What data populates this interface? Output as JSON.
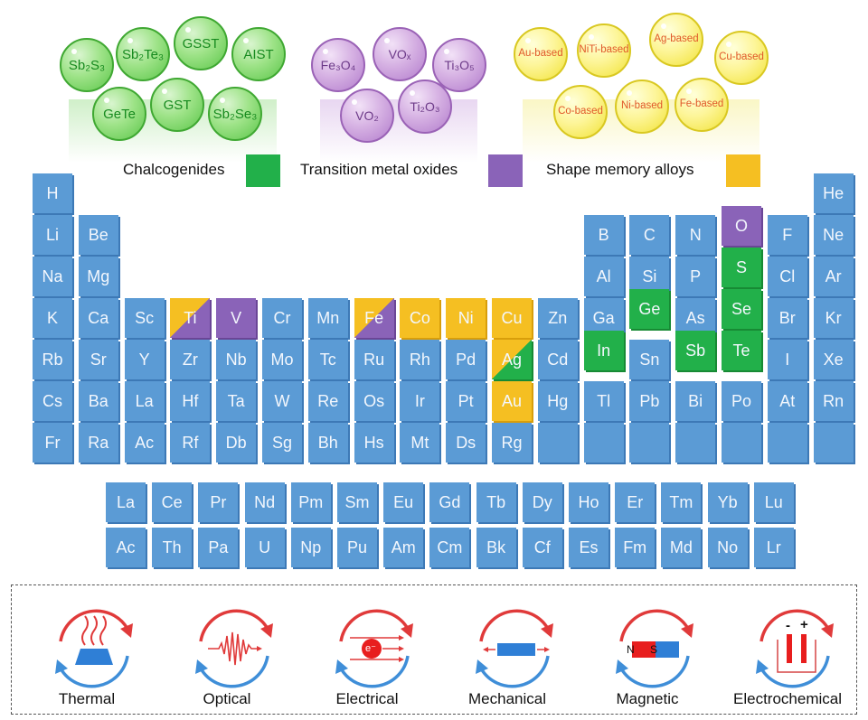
{
  "bubbles": {
    "chalcogenides": [
      {
        "label": "Sb₂S₃"
      },
      {
        "label": "Sb₂Te₃"
      },
      {
        "label": "GSST"
      },
      {
        "label": "AIST"
      },
      {
        "label": "GeTe"
      },
      {
        "label": "GST"
      },
      {
        "label": "Sb₂Se₃"
      }
    ],
    "oxides": [
      {
        "label": "Fe₃O₄"
      },
      {
        "label": "VOₓ"
      },
      {
        "label": "Ti₃O₅"
      },
      {
        "label": "VO₂"
      },
      {
        "label": "Ti₂O₃"
      }
    ],
    "alloys": [
      {
        "label": "Au-based"
      },
      {
        "label": "NiTi-based"
      },
      {
        "label": "Ag-based"
      },
      {
        "label": "Cu-based"
      },
      {
        "label": "Co-based"
      },
      {
        "label": "Ni-based"
      },
      {
        "label": "Fe-based"
      }
    ]
  },
  "legend": {
    "chalcogenides": "Chalcogenides",
    "oxides": "Transition metal oxides",
    "alloys": "Shape memory alloys"
  },
  "colors": {
    "element": "#5b9bd5",
    "chalcogenide": "#22b04a",
    "oxide": "#8a63b8",
    "alloy": "#f5bf22",
    "arrow_red": "#e03a3a",
    "arrow_blue": "#3f8ed8"
  },
  "table": {
    "main": [
      [
        "H",
        "",
        "",
        "",
        "",
        "",
        "",
        "",
        "",
        "",
        "",
        "",
        "",
        "",
        "",
        "",
        "",
        "He"
      ],
      [
        "Li",
        "Be",
        "",
        "",
        "",
        "",
        "",
        "",
        "",
        "",
        "",
        "",
        "B",
        "C",
        "N",
        "O",
        "F",
        "Ne"
      ],
      [
        "Na",
        "Mg",
        "",
        "",
        "",
        "",
        "",
        "",
        "",
        "",
        "",
        "",
        "Al",
        "Si",
        "P",
        "S",
        "Cl",
        "Ar"
      ],
      [
        "K",
        "Ca",
        "Sc",
        "Ti",
        "V",
        "Cr",
        "Mn",
        "Fe",
        "Co",
        "Ni",
        "Cu",
        "Zn",
        "Ga",
        "Ge",
        "As",
        "Se",
        "Br",
        "Kr"
      ],
      [
        "Rb",
        "Sr",
        "Y",
        "Zr",
        "Nb",
        "Mo",
        "Tc",
        "Ru",
        "Rh",
        "Pd",
        "Ag",
        "Cd",
        "In",
        "Sn",
        "Sb",
        "Te",
        "I",
        "Xe"
      ],
      [
        "Cs",
        "Ba",
        "La",
        "Hf",
        "Ta",
        "W",
        "Re",
        "Os",
        "Ir",
        "Pt",
        "Au",
        "Hg",
        "Tl",
        "Pb",
        "Bi",
        "Po",
        "At",
        "Rn"
      ],
      [
        "Fr",
        "Ra",
        "Ac",
        "Rf",
        "Db",
        "Sg",
        "Bh",
        "Hs",
        "Mt",
        "Ds",
        "Rg",
        "",
        "",
        "",
        "",
        "",
        "",
        ""
      ]
    ],
    "lanthanides": [
      "La",
      "Ce",
      "Pr",
      "Nd",
      "Pm",
      "Sm",
      "Eu",
      "Gd",
      "Tb",
      "Dy",
      "Ho",
      "Er",
      "Tm",
      "Yb",
      "Lu"
    ],
    "actinides": [
      "Ac",
      "Th",
      "Pa",
      "U",
      "Np",
      "Pu",
      "Am",
      "Cm",
      "Bk",
      "Cf",
      "Es",
      "Fm",
      "Md",
      "No",
      "Lr"
    ],
    "highlights": {
      "O": "purple",
      "S": "green",
      "Se": "green",
      "Te": "green",
      "Ge": "green",
      "In": "green",
      "Sb": "green",
      "Ti": "split-yp",
      "V": "purple",
      "Fe": "split-pp",
      "Co": "yellow",
      "Ni": "yellow",
      "Cu": "yellow",
      "Ag": "split-yg",
      "Au": "yellow"
    }
  },
  "stimuli": [
    {
      "label": "Thermal",
      "icon": "heat-icon"
    },
    {
      "label": "Optical",
      "icon": "light-wave-icon"
    },
    {
      "label": "Electrical",
      "icon": "electron-icon"
    },
    {
      "label": "Mechanical",
      "icon": "force-bar-icon"
    },
    {
      "label": "Magnetic",
      "icon": "magnet-icon"
    },
    {
      "label": "Electrochemical",
      "icon": "electrochemical-cell-icon"
    }
  ],
  "magnet": {
    "n": "N",
    "s": "S"
  },
  "electron": {
    "label": "e⁻"
  },
  "battery": {
    "minus": "-",
    "plus": "+"
  }
}
